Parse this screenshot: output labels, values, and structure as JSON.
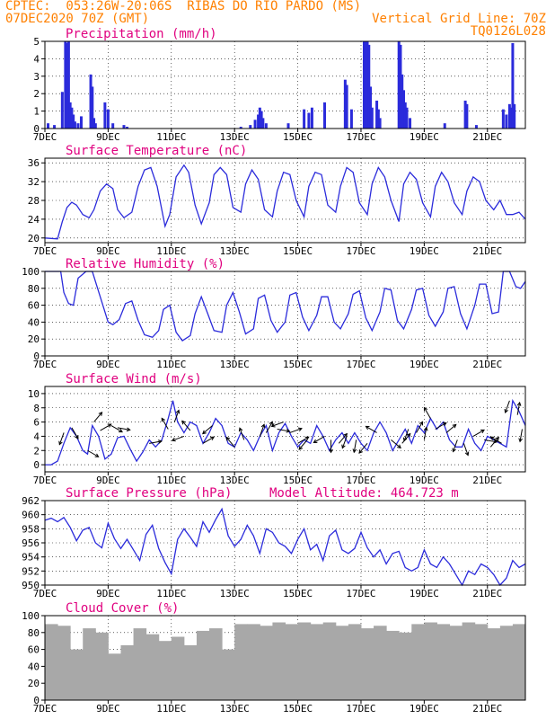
{
  "header": {
    "line1_left": "CPTEC:  053:26W-20:06S  RIBAS DO RIO PARDO (MS)",
    "line2_left": "07DEC2020 70Z (GMT)",
    "line2_right": "Vertical Grid Line: 70Z",
    "line3_right": "TQ0126L028"
  },
  "x_ticks": [
    "7DEC",
    "9DEC",
    "11DEC",
    "13DEC",
    "15DEC",
    "17DEC",
    "19DEC",
    "21DEC"
  ],
  "x_tick_days": [
    7,
    9,
    11,
    13,
    15,
    17,
    19,
    21
  ],
  "x_range_days": [
    7,
    22.2
  ],
  "colors": {
    "line": "#2b2bdb",
    "title": "#e0007f",
    "header": "#ff8000",
    "cloud": "#a8a8a8",
    "arrow": "#000000",
    "grid": "#000000"
  },
  "chart_data": [
    {
      "type": "bar",
      "title": "Precipitation (mm/h)",
      "ylim": [
        0,
        5
      ],
      "yticks": [
        0,
        1,
        2,
        3,
        4,
        5
      ],
      "x": [
        7.1,
        7.3,
        7.55,
        7.65,
        7.7,
        7.75,
        7.8,
        7.85,
        7.9,
        7.95,
        8.05,
        8.15,
        8.45,
        8.5,
        8.55,
        8.6,
        8.9,
        9.0,
        9.15,
        9.5,
        9.6,
        13.2,
        13.5,
        13.65,
        13.75,
        13.8,
        13.85,
        13.9,
        14.0,
        14.7,
        15.2,
        15.35,
        15.45,
        15.85,
        16.5,
        16.55,
        16.7,
        17.1,
        17.15,
        17.2,
        17.25,
        17.3,
        17.35,
        17.5,
        17.55,
        17.6,
        18.2,
        18.25,
        18.3,
        18.35,
        18.4,
        18.45,
        18.55,
        19.65,
        20.3,
        20.35,
        20.65,
        21.5,
        21.6,
        21.7,
        21.75,
        21.8,
        21.85
      ],
      "values": [
        0.3,
        0.2,
        2.1,
        5.0,
        4.9,
        5.0,
        1.5,
        1.2,
        0.8,
        0.4,
        0.3,
        0.7,
        3.1,
        2.4,
        0.6,
        0.3,
        1.5,
        1.1,
        0.3,
        0.2,
        0.1,
        0.1,
        0.2,
        0.5,
        0.8,
        1.2,
        1.0,
        0.6,
        0.3,
        0.3,
        1.1,
        0.9,
        1.2,
        1.5,
        2.8,
        2.5,
        1.1,
        5.0,
        5.0,
        5.0,
        4.8,
        2.4,
        1.2,
        1.6,
        1.1,
        0.6,
        5.0,
        4.8,
        3.1,
        2.2,
        1.5,
        1.2,
        0.6,
        0.3,
        1.6,
        1.4,
        0.2,
        1.1,
        0.8,
        1.4,
        1.2,
        4.9,
        1.4
      ]
    },
    {
      "type": "line",
      "title": "Surface Temperature (nC)",
      "ylim": [
        19,
        37
      ],
      "yticks": [
        20,
        24,
        28,
        32,
        36
      ],
      "x": [
        7.0,
        7.2,
        7.4,
        7.55,
        7.7,
        7.85,
        8.0,
        8.2,
        8.4,
        8.55,
        8.75,
        8.95,
        9.15,
        9.3,
        9.5,
        9.75,
        9.95,
        10.15,
        10.35,
        10.55,
        10.8,
        10.95,
        11.15,
        11.4,
        11.55,
        11.75,
        11.95,
        12.2,
        12.35,
        12.55,
        12.75,
        12.95,
        13.2,
        13.35,
        13.55,
        13.75,
        13.95,
        14.2,
        14.35,
        14.55,
        14.75,
        14.95,
        15.2,
        15.35,
        15.55,
        15.75,
        15.95,
        16.2,
        16.35,
        16.55,
        16.75,
        16.95,
        17.2,
        17.35,
        17.55,
        17.75,
        17.95,
        18.2,
        18.35,
        18.55,
        18.75,
        18.95,
        19.2,
        19.35,
        19.55,
        19.75,
        19.95,
        20.2,
        20.35,
        20.55,
        20.75,
        20.95,
        21.2,
        21.4,
        21.6,
        21.8,
        22.0,
        22.2
      ],
      "values": [
        20.0,
        19.9,
        19.8,
        23.5,
        26.5,
        27.6,
        27.0,
        25.0,
        24.3,
        26.0,
        30.0,
        31.5,
        30.5,
        26.0,
        24.3,
        25.5,
        31.0,
        34.5,
        35.0,
        31.0,
        22.5,
        25.0,
        33.0,
        35.5,
        34.0,
        27.0,
        23.0,
        27.5,
        33.5,
        35.0,
        33.5,
        26.5,
        25.5,
        31.5,
        34.5,
        32.5,
        26.0,
        24.5,
        30.0,
        34.0,
        33.5,
        28.0,
        24.5,
        31.0,
        34.0,
        33.5,
        27.0,
        25.5,
        31.0,
        35.0,
        34.0,
        27.5,
        25.0,
        31.5,
        35.0,
        33.0,
        28.0,
        23.5,
        31.5,
        34.0,
        32.5,
        27.5,
        24.5,
        31.0,
        34.0,
        32.0,
        27.5,
        25.0,
        30.0,
        33.0,
        32.0,
        28.0,
        26.0,
        28.0,
        25.0,
        25.0,
        25.5,
        24.0
      ]
    },
    {
      "type": "line",
      "title": "Relative Humidity (%)",
      "ylim": [
        0,
        100
      ],
      "yticks": [
        0,
        20,
        40,
        60,
        80,
        100
      ],
      "x": [
        7.0,
        7.3,
        7.5,
        7.6,
        7.75,
        7.9,
        8.05,
        8.3,
        8.5,
        8.75,
        9.0,
        9.15,
        9.35,
        9.55,
        9.75,
        9.95,
        10.15,
        10.4,
        10.6,
        10.75,
        10.95,
        11.15,
        11.35,
        11.6,
        11.75,
        11.95,
        12.15,
        12.35,
        12.6,
        12.75,
        12.95,
        13.15,
        13.35,
        13.6,
        13.75,
        13.95,
        14.15,
        14.35,
        14.6,
        14.75,
        14.95,
        15.15,
        15.35,
        15.6,
        15.75,
        15.95,
        16.15,
        16.35,
        16.6,
        16.75,
        16.95,
        17.15,
        17.35,
        17.6,
        17.75,
        17.95,
        18.15,
        18.35,
        18.6,
        18.75,
        18.95,
        19.15,
        19.35,
        19.6,
        19.75,
        19.95,
        20.15,
        20.35,
        20.6,
        20.75,
        20.95,
        21.15,
        21.35,
        21.5,
        21.7,
        21.9,
        22.05,
        22.2
      ],
      "values": [
        100,
        100,
        100,
        75,
        62,
        60,
        92,
        100,
        100,
        70,
        40,
        37,
        43,
        62,
        65,
        42,
        25,
        22,
        30,
        55,
        60,
        28,
        18,
        24,
        50,
        70,
        50,
        30,
        28,
        60,
        75,
        52,
        26,
        32,
        68,
        72,
        42,
        28,
        40,
        72,
        75,
        46,
        30,
        48,
        70,
        70,
        40,
        32,
        50,
        73,
        77,
        45,
        30,
        52,
        80,
        78,
        42,
        32,
        55,
        78,
        80,
        48,
        35,
        52,
        80,
        82,
        50,
        32,
        60,
        85,
        85,
        50,
        52,
        100,
        100,
        82,
        80,
        88
      ]
    },
    {
      "type": "line",
      "title": "Surface Wind (m/s)",
      "ylim": [
        -1,
        11
      ],
      "yticks": [
        0,
        2,
        4,
        6,
        8,
        10
      ],
      "x": [
        7.0,
        7.2,
        7.4,
        7.6,
        7.8,
        8.0,
        8.2,
        8.35,
        8.5,
        8.7,
        8.9,
        9.1,
        9.3,
        9.5,
        9.7,
        9.9,
        10.1,
        10.3,
        10.5,
        10.7,
        10.9,
        11.05,
        11.2,
        11.4,
        11.6,
        11.8,
        12.0,
        12.2,
        12.4,
        12.6,
        12.8,
        13.0,
        13.2,
        13.4,
        13.6,
        13.8,
        14.0,
        14.2,
        14.4,
        14.6,
        14.8,
        15.0,
        15.2,
        15.4,
        15.6,
        15.8,
        16.0,
        16.2,
        16.4,
        16.6,
        16.8,
        17.0,
        17.2,
        17.4,
        17.6,
        17.8,
        18.0,
        18.2,
        18.4,
        18.6,
        18.8,
        19.0,
        19.2,
        19.4,
        19.6,
        19.8,
        20.0,
        20.2,
        20.4,
        20.6,
        20.8,
        21.0,
        21.2,
        21.4,
        21.6,
        21.8,
        22.0,
        22.2
      ],
      "values": [
        0.0,
        0.0,
        0.5,
        3.0,
        5.2,
        4.0,
        2.0,
        1.5,
        5.5,
        4.0,
        0.8,
        1.5,
        3.8,
        4.0,
        2.2,
        0.5,
        1.8,
        3.5,
        2.5,
        3.5,
        6.5,
        9.0,
        6.0,
        4.5,
        6.0,
        5.5,
        3.0,
        4.5,
        6.5,
        5.5,
        3.0,
        2.5,
        4.5,
        3.5,
        2.0,
        4.0,
        5.5,
        2.0,
        4.5,
        5.8,
        4.0,
        2.5,
        3.5,
        3.0,
        5.5,
        4.0,
        2.0,
        3.5,
        4.5,
        3.0,
        4.5,
        3.0,
        2.0,
        4.5,
        6.0,
        4.5,
        2.0,
        3.5,
        5.0,
        3.0,
        5.5,
        4.5,
        6.5,
        5.0,
        6.0,
        3.5,
        2.5,
        2.5,
        5.0,
        3.0,
        2.0,
        4.0,
        3.5,
        3.0,
        2.5,
        9.0,
        7.5,
        5.5
      ]
    },
    {
      "type": "line",
      "title": "Surface Pressure (hPa)",
      "subtitle": "Model Altitude: 464.723 m",
      "ylim": [
        950,
        962
      ],
      "yticks": [
        950,
        952,
        954,
        956,
        958,
        960,
        962
      ],
      "x": [
        7.0,
        7.2,
        7.4,
        7.6,
        7.8,
        8.0,
        8.2,
        8.4,
        8.6,
        8.8,
        9.0,
        9.2,
        9.4,
        9.6,
        9.8,
        10.0,
        10.2,
        10.4,
        10.6,
        10.8,
        11.0,
        11.2,
        11.4,
        11.6,
        11.8,
        12.0,
        12.2,
        12.4,
        12.6,
        12.8,
        13.0,
        13.2,
        13.4,
        13.6,
        13.8,
        14.0,
        14.2,
        14.4,
        14.6,
        14.8,
        15.0,
        15.2,
        15.4,
        15.6,
        15.8,
        16.0,
        16.2,
        16.4,
        16.6,
        16.8,
        17.0,
        17.2,
        17.4,
        17.6,
        17.8,
        18.0,
        18.2,
        18.4,
        18.6,
        18.8,
        19.0,
        19.2,
        19.4,
        19.6,
        19.8,
        20.0,
        20.2,
        20.4,
        20.6,
        20.8,
        21.0,
        21.2,
        21.4,
        21.6,
        21.8,
        22.0,
        22.2
      ],
      "values": [
        959.2,
        959.5,
        959.0,
        959.6,
        958.2,
        956.3,
        957.8,
        958.2,
        956.0,
        955.3,
        958.8,
        956.6,
        955.2,
        956.5,
        955.0,
        953.5,
        957.2,
        958.5,
        955.2,
        953.2,
        951.6,
        956.5,
        958.0,
        956.8,
        955.5,
        959.0,
        957.5,
        959.3,
        960.8,
        957.0,
        955.5,
        956.5,
        958.5,
        957.0,
        954.5,
        958.0,
        957.5,
        956.0,
        955.5,
        954.5,
        956.5,
        958.0,
        955.0,
        955.8,
        953.5,
        957.0,
        957.8,
        955.0,
        954.5,
        955.2,
        957.5,
        955.3,
        954.0,
        955.0,
        953.0,
        954.5,
        954.8,
        952.5,
        952.0,
        952.5,
        955.0,
        953.0,
        952.5,
        954.0,
        953.0,
        951.5,
        950.0,
        952.0,
        951.5,
        953.0,
        952.5,
        951.5,
        950.0,
        951.0,
        953.5,
        952.5,
        953.0
      ]
    },
    {
      "type": "bar",
      "title": "Cloud Cover (%)",
      "ylim": [
        0,
        100
      ],
      "yticks": [
        0,
        20,
        40,
        60,
        80,
        100
      ],
      "x": [
        7.0,
        7.4,
        7.8,
        8.2,
        8.6,
        9.0,
        9.4,
        9.8,
        10.2,
        10.6,
        11.0,
        11.4,
        11.8,
        12.2,
        12.6,
        13.0,
        13.4,
        13.8,
        14.2,
        14.6,
        15.0,
        15.4,
        15.8,
        16.2,
        16.6,
        17.0,
        17.4,
        17.8,
        18.2,
        18.6,
        19.0,
        19.4,
        19.8,
        20.2,
        20.6,
        21.0,
        21.4,
        21.8,
        22.2
      ],
      "values": [
        90,
        88,
        60,
        85,
        80,
        55,
        65,
        85,
        78,
        70,
        75,
        65,
        82,
        85,
        60,
        90,
        90,
        88,
        92,
        90,
        92,
        90,
        92,
        88,
        90,
        85,
        88,
        82,
        80,
        90,
        92,
        90,
        88,
        92,
        90,
        85,
        88,
        90,
        88
      ]
    }
  ],
  "wind_vectors": {
    "x": [
      7.6,
      7.85,
      8.35,
      8.55,
      8.75,
      9.1,
      9.3,
      10.3,
      10.9,
      11.1,
      11.4,
      11.6,
      12.0,
      12.3,
      13.0,
      13.3,
      13.8,
      14.0,
      14.35,
      14.55,
      14.75,
      15.0,
      15.3,
      15.85,
      16.05,
      16.3,
      16.55,
      16.85,
      17.2,
      17.5,
      17.95,
      18.3,
      18.5,
      18.75,
      19.0,
      19.2,
      19.35,
      19.7,
      20.05,
      20.25,
      20.55,
      20.9,
      21.1,
      21.45,
      21.7,
      21.95,
      22.1
    ],
    "speed": [
      4.5,
      5.2,
      2.0,
      6.0,
      4.8,
      5.5,
      5.2,
      3.0,
      5.0,
      6.0,
      4.0,
      4.8,
      3.0,
      5.5,
      2.5,
      3.5,
      4.0,
      4.5,
      5.0,
      6.0,
      4.5,
      3.0,
      3.5,
      4.0,
      3.5,
      3.0,
      4.0,
      3.5,
      3.0,
      4.5,
      3.5,
      3.0,
      5.0,
      4.5,
      3.5,
      6.5,
      5.0,
      4.5,
      3.5,
      3.0,
      4.0,
      3.5,
      2.5,
      3.0,
      9.0,
      7.0,
      5.0
    ],
    "dir_deg": [
      200,
      150,
      120,
      40,
      60,
      120,
      100,
      80,
      330,
      20,
      250,
      320,
      60,
      230,
      320,
      340,
      20,
      30,
      100,
      250,
      70,
      60,
      220,
      240,
      180,
      40,
      200,
      190,
      220,
      300,
      130,
      40,
      200,
      30,
      10,
      330,
      60,
      50,
      200,
      160,
      60,
      100,
      40,
      300,
      200,
      10,
      190
    ]
  }
}
